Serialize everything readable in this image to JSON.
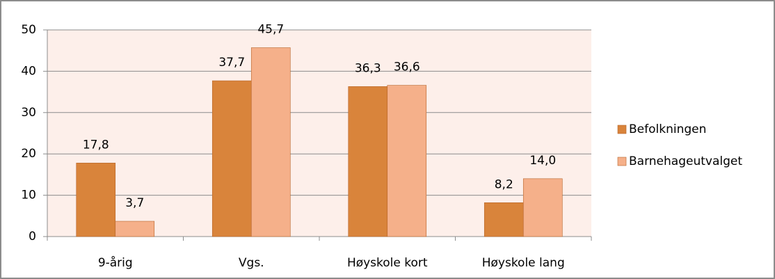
{
  "chart_data": {
    "type": "bar",
    "categories": [
      "9-årig",
      "Vgs.",
      "Høyskole kort",
      "Høyskole lang"
    ],
    "series": [
      {
        "name": "Befolkningen",
        "color": "#d9843b",
        "values": [
          17.8,
          37.7,
          36.3,
          8.2
        ],
        "value_labels": [
          "17,8",
          "37,7",
          "36,3",
          "8,2"
        ]
      },
      {
        "name": "Barnehageutvalget",
        "color": "#f5b08a",
        "values": [
          3.7,
          45.7,
          36.6,
          14.0
        ],
        "value_labels": [
          "3,7",
          "45,7",
          "36,6",
          "14,0"
        ]
      }
    ],
    "ylim": [
      0,
      50
    ],
    "yticks": [
      0,
      10,
      20,
      30,
      40,
      50
    ],
    "grid": true,
    "legend": "right"
  }
}
